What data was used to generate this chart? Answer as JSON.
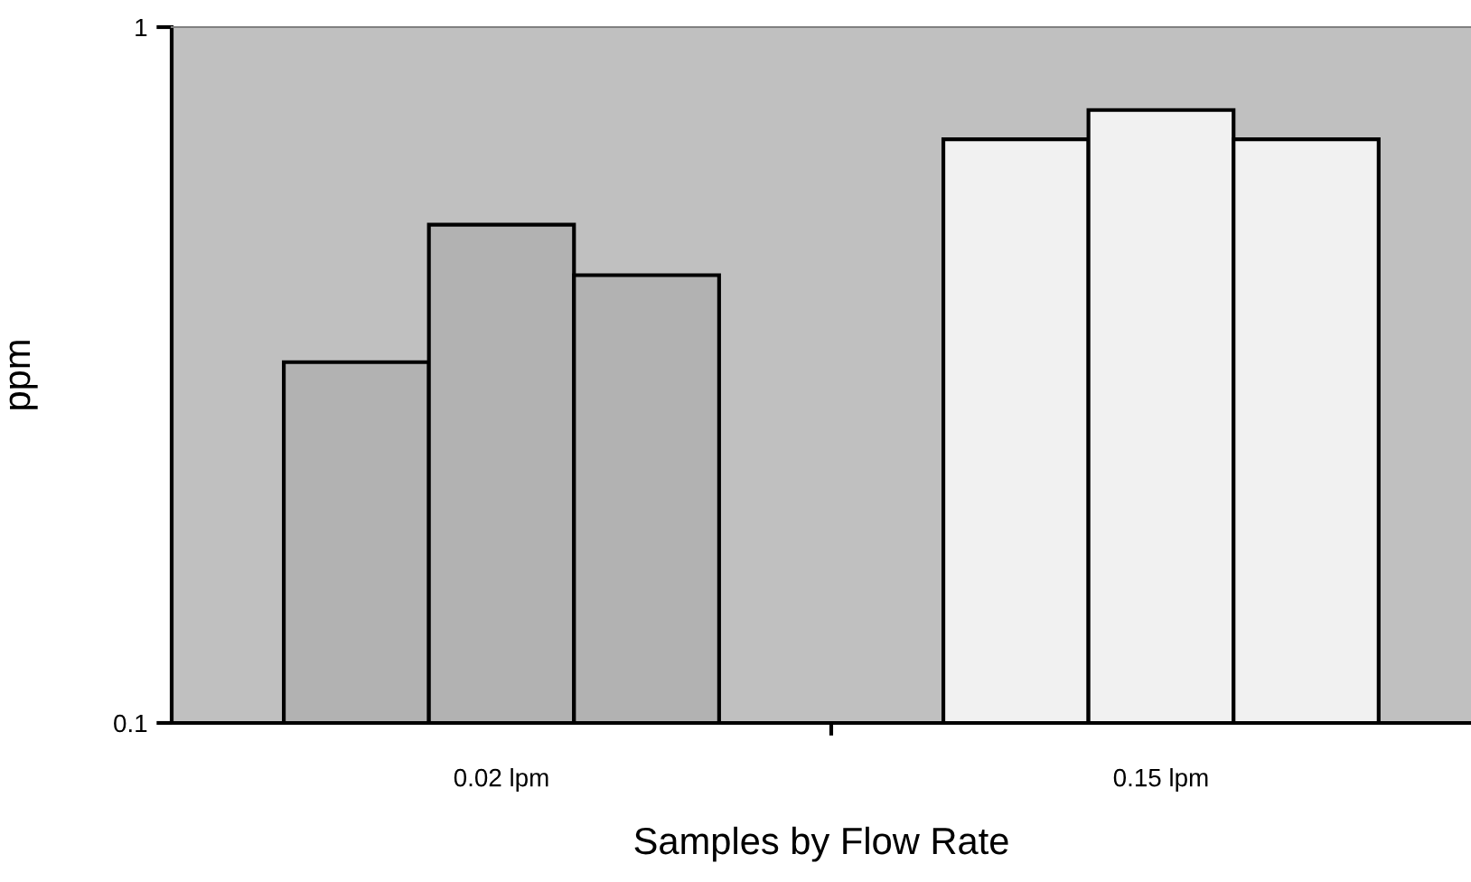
{
  "chart_data": {
    "type": "bar",
    "xlabel": "Samples by Flow Rate",
    "ylabel": "ppm",
    "categories": [
      "0.02 lpm",
      "0.15 lpm"
    ],
    "series": [
      {
        "colors": [
          "#b2b2b2",
          "#f1f1f1"
        ],
        "values": [
          0.33,
          0.69
        ]
      },
      {
        "colors": [
          "#b2b2b2",
          "#f1f1f1"
        ],
        "values": [
          0.52,
          0.76
        ]
      },
      {
        "colors": [
          "#b2b2b2",
          "#f1f1f1"
        ],
        "values": [
          0.44,
          0.69
        ]
      }
    ],
    "log": true,
    "ylim": [
      0.1,
      1
    ],
    "yticks": [
      0.1,
      1
    ],
    "grid": false
  }
}
